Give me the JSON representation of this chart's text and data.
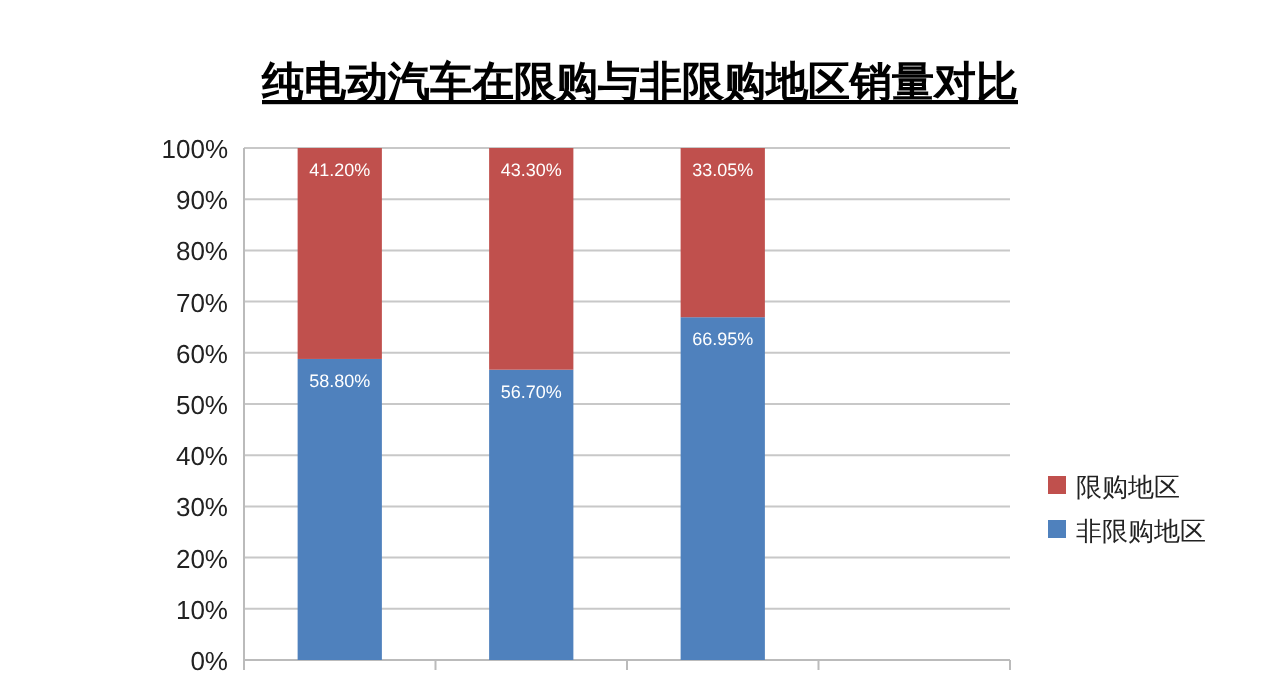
{
  "chart_data": {
    "type": "bar",
    "title": "纯电动汽车在限购与非限购地区销量对比",
    "categories": [
      null,
      null,
      null,
      null
    ],
    "stacked": true,
    "ylim": [
      0,
      100
    ],
    "yticks": [
      {
        "value": 0,
        "label": "0%"
      },
      {
        "value": 10,
        "label": "10%"
      },
      {
        "value": 20,
        "label": "20%"
      },
      {
        "value": 30,
        "label": "30%"
      },
      {
        "value": 40,
        "label": "40%"
      },
      {
        "value": 50,
        "label": "50%"
      },
      {
        "value": 60,
        "label": "60%"
      },
      {
        "value": 70,
        "label": "70%"
      },
      {
        "value": 80,
        "label": "80%"
      },
      {
        "value": 90,
        "label": "90%"
      },
      {
        "value": 100,
        "label": "100%"
      }
    ],
    "grid": "y",
    "legend": "right",
    "series": [
      {
        "name": "非限购地区",
        "color": "#4f81bd",
        "values": [
          58.8,
          56.7,
          66.95,
          null
        ],
        "value_labels": [
          "58.80%",
          "56.70%",
          "66.95%",
          null
        ]
      },
      {
        "name": "限购地区",
        "color": "#c0504d",
        "values": [
          41.2,
          43.3,
          33.05,
          null
        ],
        "value_labels": [
          "41.20%",
          "43.30%",
          "33.05%",
          null
        ]
      }
    ]
  }
}
